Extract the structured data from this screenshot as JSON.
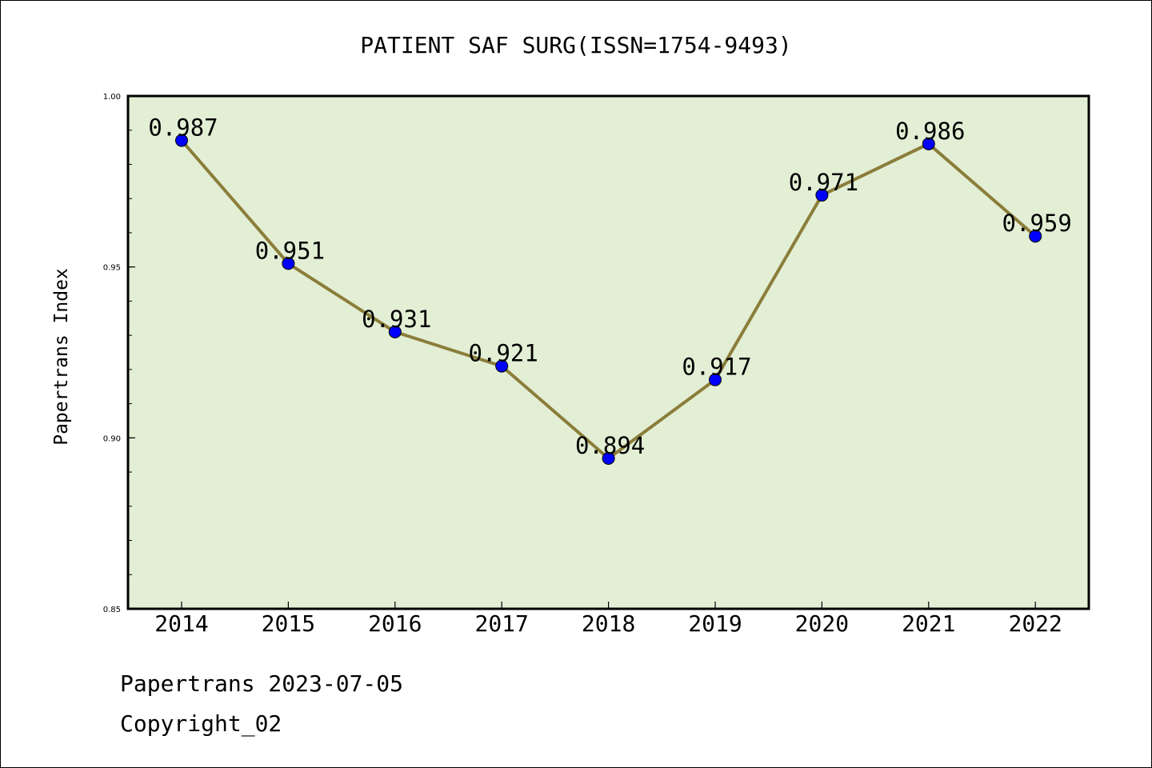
{
  "chart_data": {
    "type": "line",
    "title": "PATIENT SAF SURG(ISSN=1754-9493)",
    "ylabel": "Papertrans Index",
    "xlabel": "",
    "categories": [
      "2014",
      "2015",
      "2016",
      "2017",
      "2018",
      "2019",
      "2020",
      "2021",
      "2022"
    ],
    "values": [
      0.987,
      0.951,
      0.931,
      0.921,
      0.894,
      0.917,
      0.971,
      0.986,
      0.959
    ],
    "data_labels": [
      "0.987",
      "0.951",
      "0.931",
      "0.921",
      "0.894",
      "0.917",
      "0.971",
      "0.986",
      "0.959"
    ],
    "ylim": [
      0.85,
      1.0
    ],
    "y_ticks": [
      0.85,
      0.9,
      0.95,
      1.0
    ],
    "y_tick_labels": [
      "0.85",
      "0.90",
      "0.95",
      "1.00"
    ],
    "grid": false,
    "colors": {
      "plot_background": "#e2efd5",
      "line": "#8b7d3a",
      "marker": "#0000ff"
    }
  },
  "footer": {
    "line1": "Papertrans 2023-07-05",
    "line2": "Copyright_02"
  }
}
